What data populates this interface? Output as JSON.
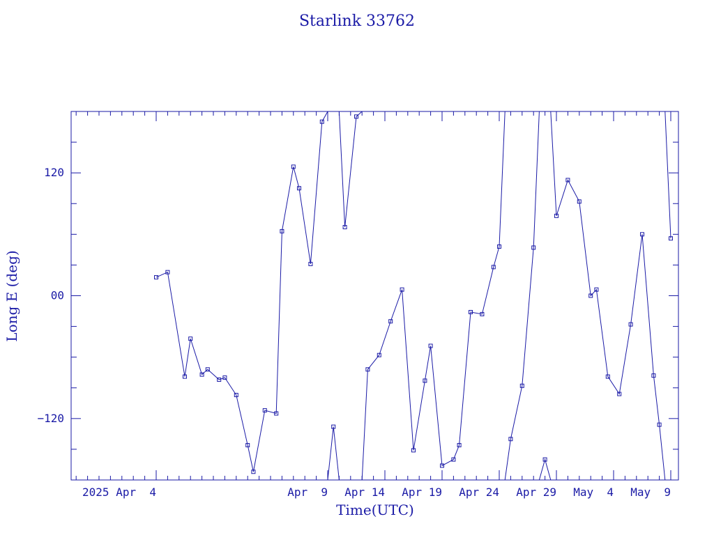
{
  "chart_data": {
    "type": "line",
    "title": "Starlink 33762",
    "xlabel": "Time(UTC)",
    "ylabel": "Long E (deg)",
    "x_unit": "days (April 2025)",
    "xlim": [
      29.5,
      40.6
    ],
    "ylim": [
      -180,
      180
    ],
    "x_ticks": [
      {
        "value": 31,
        "label": "2025 Apr  4"
      },
      {
        "value": 34,
        "label": "Apr  9"
      },
      {
        "value": 35,
        "label": "Apr 14"
      },
      {
        "value": 36,
        "label": "Apr 19"
      },
      {
        "value": 37,
        "label": "Apr 24"
      },
      {
        "value": 38,
        "label": "Apr 29"
      },
      {
        "value": 39,
        "label": "May  4"
      },
      {
        "value": 40,
        "label": "May  9"
      }
    ],
    "y_ticks": [
      {
        "value": 120,
        "label": "120"
      },
      {
        "value": 0,
        "label": "00"
      },
      {
        "value": -120,
        "label": "−120"
      }
    ],
    "grid": false,
    "colors": {
      "line": "#1a1aa6"
    },
    "series": [
      {
        "values": [
          [
            31.0,
            18
          ],
          [
            31.2,
            23
          ],
          [
            31.5,
            -79
          ],
          [
            31.6,
            -42
          ],
          [
            31.8,
            -77
          ],
          [
            31.9,
            -72
          ],
          [
            32.1,
            -82
          ],
          [
            32.2,
            -80
          ],
          [
            32.4,
            -97
          ],
          [
            32.6,
            -146
          ],
          [
            32.7,
            -172
          ],
          [
            32.9,
            -112
          ],
          [
            33.1,
            -115
          ],
          [
            33.2,
            63
          ],
          [
            33.4,
            126
          ],
          [
            33.5,
            105
          ],
          [
            33.7,
            31
          ],
          [
            33.9,
            170
          ],
          [
            34.1,
            -128
          ],
          [
            34.3,
            67
          ],
          [
            34.5,
            175
          ],
          [
            34.7,
            -72
          ],
          [
            34.9,
            -58
          ],
          [
            35.1,
            -25
          ],
          [
            35.3,
            6
          ],
          [
            35.5,
            -151
          ],
          [
            35.7,
            -83
          ],
          [
            35.8,
            -49
          ],
          [
            36.0,
            -166
          ],
          [
            36.2,
            -160
          ],
          [
            36.3,
            -146
          ],
          [
            36.5,
            -16
          ],
          [
            36.7,
            -18
          ],
          [
            36.9,
            28
          ],
          [
            37.0,
            48
          ],
          [
            37.2,
            -140
          ],
          [
            37.4,
            -88
          ],
          [
            37.6,
            47
          ],
          [
            37.8,
            -160
          ],
          [
            38.0,
            78
          ],
          [
            38.2,
            113
          ],
          [
            38.4,
            92
          ],
          [
            38.6,
            0
          ],
          [
            38.7,
            6
          ],
          [
            38.9,
            -79
          ],
          [
            39.1,
            -96
          ],
          [
            39.3,
            -28
          ],
          [
            39.5,
            60
          ],
          [
            39.7,
            -78
          ],
          [
            39.8,
            -126
          ],
          [
            40.0,
            56
          ]
        ]
      }
    ]
  }
}
